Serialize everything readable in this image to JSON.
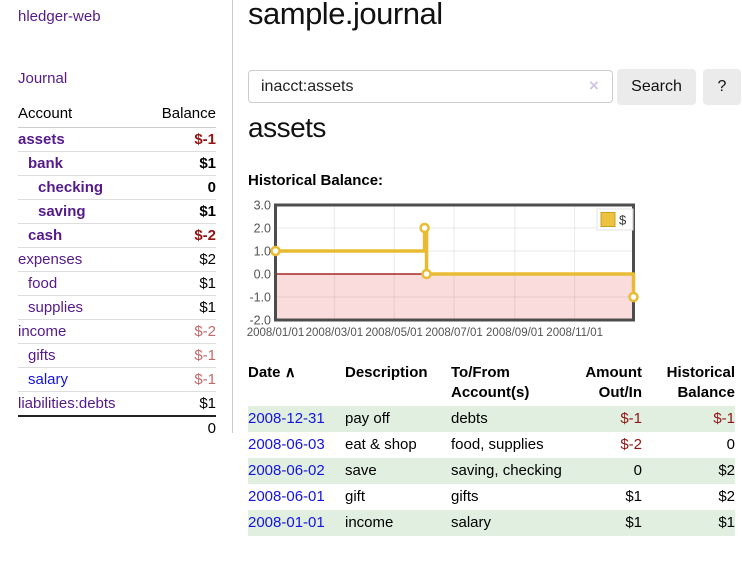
{
  "app": {
    "brand": "hledger-web",
    "nav_journal": "Journal"
  },
  "sidebar": {
    "header": {
      "account": "Account",
      "balance": "Balance"
    },
    "accounts": [
      {
        "name": "assets",
        "indent": 0,
        "bold": true,
        "name_color": "purple",
        "balance": "$-1",
        "balance_style": "neg-strong"
      },
      {
        "name": "bank",
        "indent": 1,
        "bold": true,
        "name_color": "purple",
        "balance": "$1",
        "balance_style": "normal"
      },
      {
        "name": "checking",
        "indent": 2,
        "bold": true,
        "name_color": "purple",
        "balance": "0",
        "balance_style": "normal"
      },
      {
        "name": "saving",
        "indent": 2,
        "bold": true,
        "name_color": "purple",
        "balance": "$1",
        "balance_style": "normal"
      },
      {
        "name": "cash",
        "indent": 1,
        "bold": true,
        "name_color": "purple",
        "balance": "$-2",
        "balance_style": "neg-strong"
      },
      {
        "name": "expenses",
        "indent": 0,
        "bold": false,
        "name_color": "purple",
        "balance": "$2",
        "balance_style": "normal"
      },
      {
        "name": "food",
        "indent": 1,
        "bold": false,
        "name_color": "purple",
        "balance": "$1",
        "balance_style": "normal"
      },
      {
        "name": "supplies",
        "indent": 1,
        "bold": false,
        "name_color": "purple",
        "balance": "$1",
        "balance_style": "normal"
      },
      {
        "name": "income",
        "indent": 0,
        "bold": false,
        "name_color": "purple",
        "balance": "$-2",
        "balance_style": "neg-soft"
      },
      {
        "name": "gifts",
        "indent": 1,
        "bold": false,
        "name_color": "purple",
        "balance": "$-1",
        "balance_style": "neg-soft"
      },
      {
        "name": "salary",
        "indent": 1,
        "bold": false,
        "name_color": "blue",
        "balance": "$-1",
        "balance_style": "neg-soft"
      },
      {
        "name": "liabilities:debts",
        "indent": 0,
        "bold": false,
        "name_color": "purple",
        "balance": "$1",
        "balance_style": "normal"
      }
    ],
    "total": "0"
  },
  "header": {
    "title": "sample.journal"
  },
  "search": {
    "value": "inacct:assets",
    "clear_icon": "×",
    "button_label": "Search",
    "help_label": "?"
  },
  "account_page": {
    "title": "assets"
  },
  "chart_data": {
    "type": "line",
    "title": "Historical Balance:",
    "step": true,
    "x_range": [
      "2008-01-01",
      "2008-12-31"
    ],
    "x_ticks": [
      "2008/01/01",
      "2008/03/01",
      "2008/05/01",
      "2008/07/01",
      "2008/09/01",
      "2008/11/01"
    ],
    "y_ticks": [
      3.0,
      2.0,
      1.0,
      0.0,
      -1.0,
      -2.0
    ],
    "ylim": [
      -2,
      3
    ],
    "legend_position": "top-right",
    "series": [
      {
        "name": "$",
        "color": "#e8bb33",
        "square_color": "#edc240",
        "square_border": "#c9a21f",
        "points": [
          [
            "2008-01-01",
            1
          ],
          [
            "2008-06-01",
            2
          ],
          [
            "2008-06-03",
            0
          ],
          [
            "2008-12-31",
            -1
          ]
        ]
      }
    ],
    "negative_region_color": "#fbdcdc",
    "zero_line_color": "#990000",
    "border_color": "#4d4d4d",
    "grid_color": "rgba(84,84,84,0.12)",
    "label_color": "#545454"
  },
  "register": {
    "sort_icon": "∧",
    "columns": [
      {
        "label": "Date",
        "align": "left"
      },
      {
        "label": "Description",
        "align": "left"
      },
      {
        "label": "To/From Account(s)",
        "align": "left"
      },
      {
        "label": "Amount Out/In",
        "align": "right"
      },
      {
        "label": "Historical Balance",
        "align": "right"
      }
    ],
    "rows": [
      {
        "date": "2008-12-31",
        "description": "pay off",
        "accounts": "debts",
        "amount": "$-1",
        "amount_neg": true,
        "balance": "$-1",
        "balance_neg": true
      },
      {
        "date": "2008-06-03",
        "description": "eat & shop",
        "accounts": "food, supplies",
        "amount": "$-2",
        "amount_neg": true,
        "balance": "0",
        "balance_neg": false
      },
      {
        "date": "2008-06-02",
        "description": "save",
        "accounts": "saving, checking",
        "amount": "0",
        "amount_neg": false,
        "balance": "$2",
        "balance_neg": false
      },
      {
        "date": "2008-06-01",
        "description": "gift",
        "accounts": "gifts",
        "amount": "$1",
        "amount_neg": false,
        "balance": "$2",
        "balance_neg": false
      },
      {
        "date": "2008-01-01",
        "description": "income",
        "accounts": "salary",
        "amount": "$1",
        "amount_neg": false,
        "balance": "$1",
        "balance_neg": false
      }
    ]
  }
}
